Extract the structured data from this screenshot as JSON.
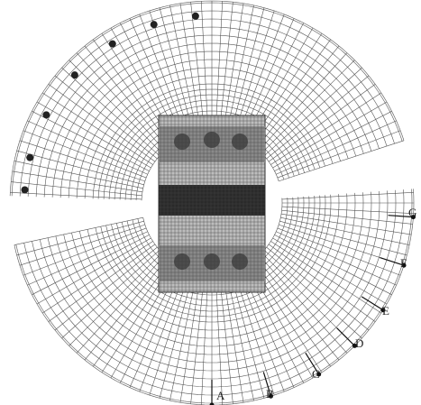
{
  "labels": [
    "A",
    "B",
    "C",
    "D",
    "E",
    "F",
    "G"
  ]
}
